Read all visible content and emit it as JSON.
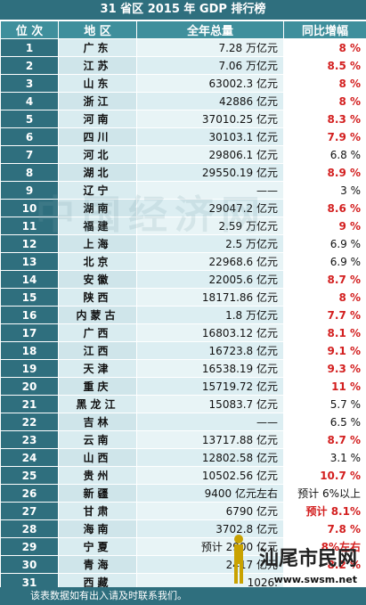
{
  "title": "31 省区 2015 年 GDP 排行榜",
  "headers": {
    "rank": "位 次",
    "region": "地 区",
    "gdp": "全年总量",
    "growth": "同比增幅"
  },
  "rows": [
    {
      "rank": "1",
      "region": "广东",
      "gdp": "7.28 万亿元",
      "growth": "8 %",
      "growth_red": true
    },
    {
      "rank": "2",
      "region": "江苏",
      "gdp": "7.06 万亿元",
      "growth": "8.5 %",
      "growth_red": true
    },
    {
      "rank": "3",
      "region": "山东",
      "gdp": "63002.3 亿元",
      "growth": "8 %",
      "growth_red": true
    },
    {
      "rank": "4",
      "region": "浙江",
      "gdp": "42886 亿元",
      "growth": "8 %",
      "growth_red": true
    },
    {
      "rank": "5",
      "region": "河南",
      "gdp": "37010.25 亿元",
      "growth": "8.3 %",
      "growth_red": true
    },
    {
      "rank": "6",
      "region": "四川",
      "gdp": "30103.1 亿元",
      "growth": "7.9 %",
      "growth_red": true
    },
    {
      "rank": "7",
      "region": "河北",
      "gdp": "29806.1 亿元",
      "growth": "6.8 %",
      "growth_red": false
    },
    {
      "rank": "8",
      "region": "湖北",
      "gdp": "29550.19 亿元",
      "growth": "8.9 %",
      "growth_red": true
    },
    {
      "rank": "9",
      "region": "辽宁",
      "gdp": "——",
      "growth": "3 %",
      "growth_red": false
    },
    {
      "rank": "10",
      "region": "湖南",
      "gdp": "29047.2 亿元",
      "growth": "8.6 %",
      "growth_red": true
    },
    {
      "rank": "11",
      "region": "福建",
      "gdp": "2.59 万亿元",
      "growth": "9 %",
      "growth_red": true
    },
    {
      "rank": "12",
      "region": "上海",
      "gdp": "2.5 万亿元",
      "growth": "6.9 %",
      "growth_red": false
    },
    {
      "rank": "13",
      "region": "北京",
      "gdp": "22968.6 亿元",
      "growth": "6.9 %",
      "growth_red": false
    },
    {
      "rank": "14",
      "region": "安徽",
      "gdp": "22005.6 亿元",
      "growth": "8.7 %",
      "growth_red": true
    },
    {
      "rank": "15",
      "region": "陕西",
      "gdp": "18171.86 亿元",
      "growth": "8 %",
      "growth_red": true
    },
    {
      "rank": "16",
      "region": "内蒙古",
      "gdp": "1.8 万亿元",
      "growth": "7.7 %",
      "growth_red": true
    },
    {
      "rank": "17",
      "region": "广西",
      "gdp": "16803.12 亿元",
      "growth": "8.1 %",
      "growth_red": true
    },
    {
      "rank": "18",
      "region": "江西",
      "gdp": "16723.8 亿元",
      "growth": "9.1 %",
      "growth_red": true
    },
    {
      "rank": "19",
      "region": "天津",
      "gdp": "16538.19 亿元",
      "growth": "9.3 %",
      "growth_red": true
    },
    {
      "rank": "20",
      "region": "重庆",
      "gdp": "15719.72 亿元",
      "growth": "11 %",
      "growth_red": true
    },
    {
      "rank": "21",
      "region": "黑龙江",
      "gdp": "15083.7 亿元",
      "growth": "5.7 %",
      "growth_red": false
    },
    {
      "rank": "22",
      "region": "吉林",
      "gdp": "——",
      "growth": "6.5 %",
      "growth_red": false
    },
    {
      "rank": "23",
      "region": "云南",
      "gdp": "13717.88 亿元",
      "growth": "8.7 %",
      "growth_red": true
    },
    {
      "rank": "24",
      "region": "山西",
      "gdp": "12802.58 亿元",
      "growth": "3.1 %",
      "growth_red": false
    },
    {
      "rank": "25",
      "region": "贵州",
      "gdp": "10502.56 亿元",
      "growth": "10.7 %",
      "growth_red": true
    },
    {
      "rank": "26",
      "region": "新疆",
      "gdp": "9400 亿元左右",
      "growth": "预计 6%以上",
      "growth_red": false
    },
    {
      "rank": "27",
      "region": "甘肃",
      "gdp": "6790 亿元",
      "growth": "预计 8.1%",
      "growth_red": true
    },
    {
      "rank": "28",
      "region": "海南",
      "gdp": "3702.8 亿元",
      "growth": "7.8 %",
      "growth_red": true
    },
    {
      "rank": "29",
      "region": "宁夏",
      "gdp": "预计 2900 亿元",
      "growth": "8%左右",
      "growth_red": true
    },
    {
      "rank": "30",
      "region": "青海",
      "gdp": "2417 亿元",
      "growth": "8.2 %",
      "growth_red": true
    },
    {
      "rank": "31",
      "region": "西藏",
      "gdp": "1026.",
      "growth": "",
      "growth_red": false
    }
  ],
  "footer": "该表数据如有出入请及时联系我们。",
  "watermark": "中国经济网",
  "logo": {
    "text": "汕尾市民网",
    "url": "www.swsm.net"
  },
  "colors": {
    "header_dark": "#2f6f7e",
    "header_mid": "#3f8f9c",
    "red": "#d31f1f"
  }
}
